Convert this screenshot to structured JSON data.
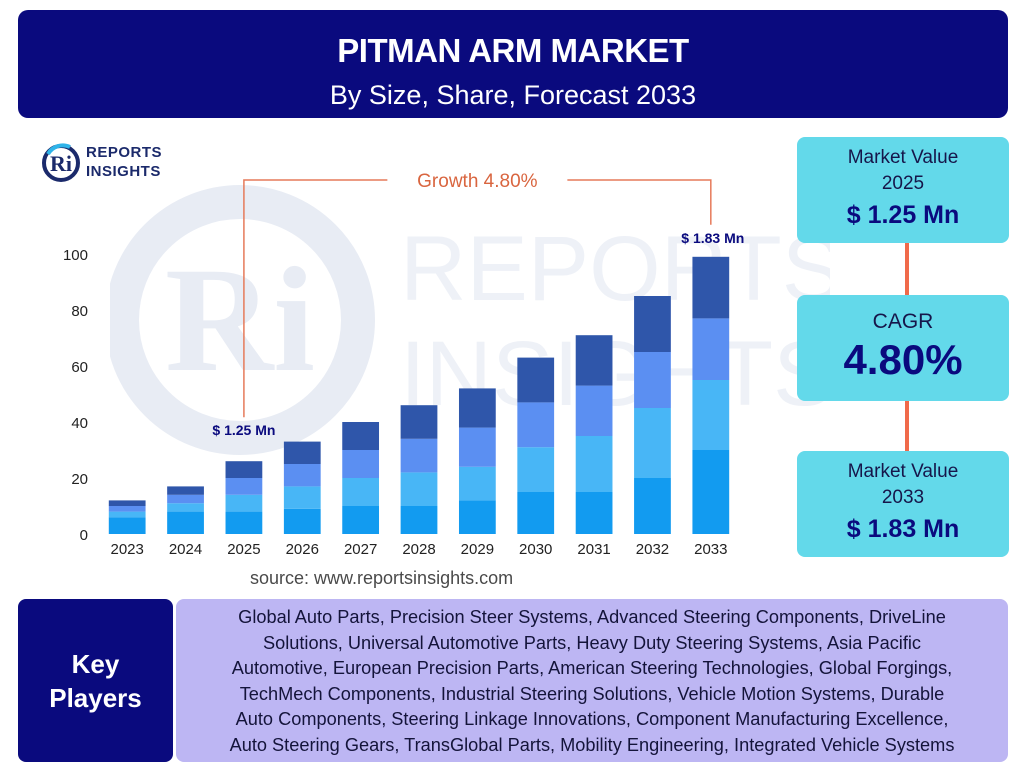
{
  "header": {
    "title": "PITMAN ARM MARKET",
    "subtitle": "By Size, Share, Forecast 2033"
  },
  "logo": {
    "line1": "REPORTS",
    "line2": "INSIGHTS",
    "mark": "Ri"
  },
  "watermark": {
    "mark": "Ri",
    "line1": "REPORTS",
    "line2": "INSIGHTS"
  },
  "chart_data": {
    "type": "bar",
    "stacked": true,
    "categories": [
      "2023",
      "2024",
      "2025",
      "2026",
      "2027",
      "2028",
      "2029",
      "2030",
      "2031",
      "2032",
      "2033"
    ],
    "series": [
      {
        "color": "#129bf0",
        "values": [
          6,
          8,
          8,
          9,
          10,
          10,
          12,
          15,
          15,
          20,
          30
        ]
      },
      {
        "color": "#48b6f6",
        "values": [
          2,
          3,
          6,
          8,
          10,
          12,
          12,
          16,
          20,
          25,
          25
        ]
      },
      {
        "color": "#5b8ff2",
        "values": [
          2,
          3,
          6,
          8,
          10,
          12,
          14,
          16,
          18,
          20,
          22
        ]
      },
      {
        "color": "#2f56aa",
        "values": [
          2,
          3,
          6,
          8,
          10,
          12,
          14,
          16,
          18,
          20,
          22
        ]
      }
    ],
    "ylim": [
      0,
      100
    ],
    "yticks": [
      0,
      20,
      40,
      60,
      80,
      100
    ],
    "grid": false,
    "annotations": {
      "growth_label": "Growth  4.80%",
      "start_value_label": "$ 1.25 Mn",
      "start_year": "2025",
      "end_value_label": "$ 1.83 Mn",
      "end_year": "2033"
    },
    "bracket_color": "#e67a5a"
  },
  "source": "source: www.reportsinsights.com",
  "kpis": {
    "value_2025": {
      "label_line1": "Market Value",
      "label_line2": "2025",
      "value": "$ 1.25 Mn"
    },
    "cagr": {
      "label": "CAGR",
      "value": "4.80%"
    },
    "value_2033": {
      "label_line1": "Market Value",
      "label_line2": "2033",
      "value": "$ 1.83 Mn"
    }
  },
  "key_players": {
    "label_line1": "Key",
    "label_line2": "Players",
    "lines": [
      "Global Auto Parts, Precision Steer Systems, Advanced Steering Components, DriveLine",
      "Solutions, Universal Automotive Parts, Heavy Duty Steering Systems, Asia Pacific",
      "Automotive, European Precision Parts, American Steering Technologies, Global Forgings,",
      "TechMech Components, Industrial Steering Solutions, Vehicle Motion Systems, Durable",
      "Auto Components, Steering Linkage Innovations, Component Manufacturing Excellence,",
      "Auto Steering Gears, TransGlobal Parts, Mobility Engineering, Integrated Vehicle Systems"
    ]
  },
  "colors": {
    "navy": "#0a0a7e",
    "cyan_box": "#63d9ea",
    "players_box": "#bdb6f3",
    "connector": "#f06a4a"
  }
}
